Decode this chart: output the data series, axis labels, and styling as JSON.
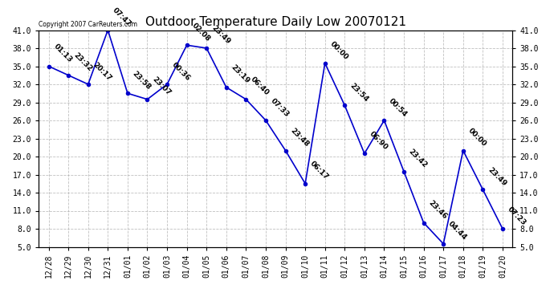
{
  "title": "Outdoor Temperature Daily Low 20070121",
  "copyright": "Copyright 2007 CarReuters.com",
  "line_color": "#0000cc",
  "marker_color": "#0000cc",
  "background_color": "#ffffff",
  "grid_color": "#b0b0b0",
  "x_labels": [
    "12/28",
    "12/29",
    "12/30",
    "12/31",
    "01/01",
    "01/02",
    "01/03",
    "01/04",
    "01/05",
    "01/06",
    "01/07",
    "01/08",
    "01/09",
    "01/10",
    "01/11",
    "01/12",
    "01/13",
    "01/14",
    "01/15",
    "01/16",
    "01/17",
    "01/18",
    "01/19",
    "01/20"
  ],
  "y_values": [
    35.0,
    33.5,
    32.0,
    41.0,
    30.5,
    29.5,
    32.0,
    38.5,
    38.0,
    31.5,
    29.5,
    26.0,
    21.0,
    15.5,
    35.5,
    28.5,
    20.5,
    26.0,
    17.5,
    9.0,
    5.5,
    21.0,
    14.5,
    8.0
  ],
  "time_labels": [
    "01:13",
    "23:32",
    "20:17",
    "07:47",
    "23:58",
    "23:07",
    "00:36",
    "02:08",
    "23:49",
    "23:19",
    "06:40",
    "07:33",
    "23:48",
    "06:17",
    "00:00",
    "23:54",
    "06:90",
    "00:54",
    "23:42",
    "23:46",
    "04:44",
    "00:00",
    "23:49",
    "07:23"
  ],
  "ylim": [
    5.0,
    41.0
  ],
  "yticks": [
    5.0,
    8.0,
    11.0,
    14.0,
    17.0,
    20.0,
    23.0,
    26.0,
    29.0,
    32.0,
    35.0,
    38.0,
    41.0
  ],
  "title_fontsize": 11,
  "tick_fontsize": 7,
  "annotation_fontsize": 6.5
}
